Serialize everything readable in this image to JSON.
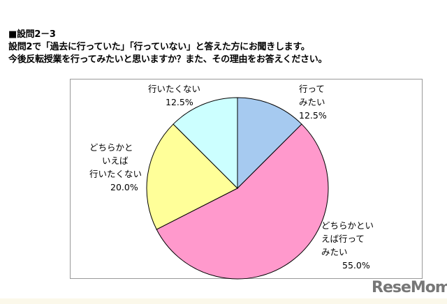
{
  "header": {
    "question_number": "■設問2－3",
    "line1": "設問2で「過去に行っていた」「行っていない」と答えた方にお聞きします。",
    "line2": "今後反転授業を行ってみたいと思いますか？また、その理由をお答えください。"
  },
  "chart_data": {
    "type": "pie",
    "start": "top",
    "direction": "clockwise",
    "slices": [
      {
        "label": [
          "行って",
          "みたい"
        ],
        "value": 12.5,
        "value_label": "12.5%",
        "color": "#a6caf0"
      },
      {
        "label": [
          "どちらかとい",
          "えば行って",
          "みたい"
        ],
        "value": 55.0,
        "value_label": "55.0%",
        "color": "#ff99cc"
      },
      {
        "label": [
          "どちらかと",
          "いえば",
          "行いたくない"
        ],
        "value": 20.0,
        "value_label": "20.0%",
        "color": "#ffff99"
      },
      {
        "label": [
          "行いたくない"
        ],
        "value": 12.5,
        "value_label": "12.5%",
        "color": "#ccffff"
      }
    ]
  },
  "watermark": "ReseMom"
}
